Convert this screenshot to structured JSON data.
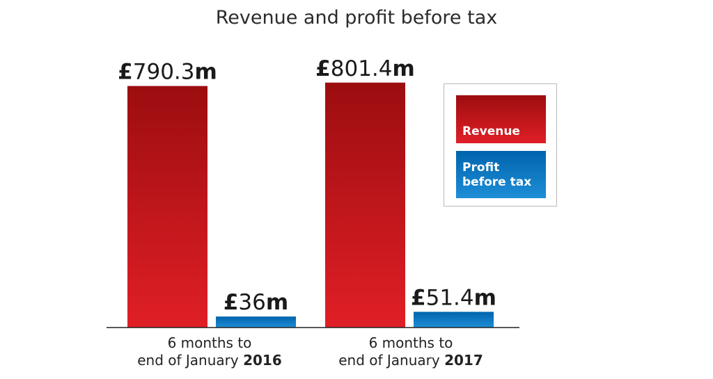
{
  "chart_data": {
    "type": "bar",
    "title": "Revenue and profit before tax",
    "categories": [
      {
        "line1": "6 months to",
        "line2_prefix": "end of January ",
        "line2_year": "2016"
      },
      {
        "line1": "6 months to",
        "line2_prefix": "end of January ",
        "line2_year": "2017"
      }
    ],
    "series": [
      {
        "name": "Revenue",
        "values": [
          790.3,
          801.4
        ],
        "labels": [
          "£790.3m",
          "£801.4m"
        ],
        "color_top": "#9c0d10",
        "color_bottom": "#e01f26"
      },
      {
        "name": "Profit before tax",
        "legend_lines": [
          "Profit",
          "before tax"
        ],
        "values": [
          36,
          51.4
        ],
        "labels": [
          "£36m",
          "£51.4m"
        ],
        "color_top": "#0064ad",
        "color_bottom": "#1e8ed6"
      }
    ],
    "unit": "£m",
    "ylim": [
      0,
      1000
    ],
    "grid": false,
    "legend_position": "right"
  }
}
